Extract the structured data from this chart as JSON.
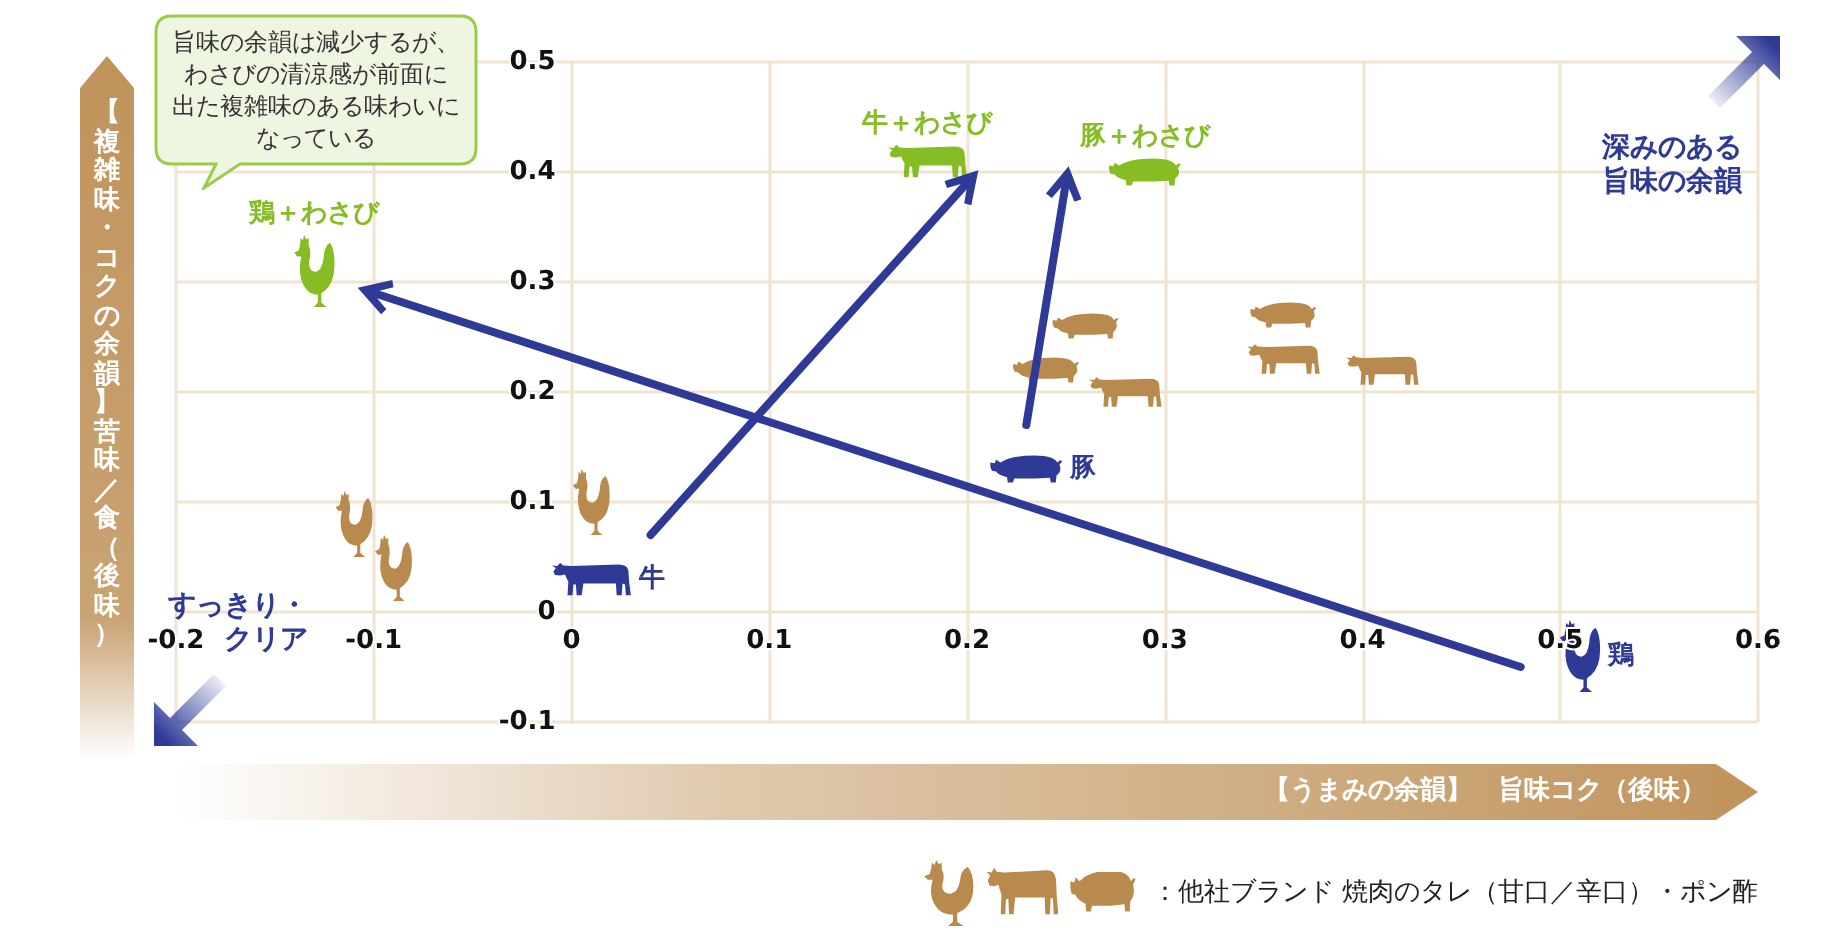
{
  "chart_data": {
    "type": "scatter",
    "xlabel": "【うまみの余韻】　旨味コク（後味）",
    "ylabel": "【複雑味・コクの余韻】苦味／食（後味）",
    "xlim": [
      -0.2,
      0.6
    ],
    "ylim": [
      -0.1,
      0.5
    ],
    "xticks": [
      -0.2,
      -0.1,
      0,
      0.1,
      0.2,
      0.3,
      0.4,
      0.5,
      0.6
    ],
    "yticks": [
      -0.1,
      0,
      0.1,
      0.2,
      0.3,
      0.4,
      0.5
    ],
    "grid": true,
    "legend": "bottom right",
    "series": [
      {
        "name": "鶏",
        "color": "#2f3a97",
        "x": [
          0.51
        ],
        "values": [
          -0.04
        ]
      },
      {
        "name": "牛",
        "color": "#2f3a97",
        "x": [
          0.01
        ],
        "values": [
          0.03
        ]
      },
      {
        "name": "豚",
        "color": "#2f3a97",
        "x": [
          0.23
        ],
        "values": [
          0.13
        ]
      },
      {
        "name": "鶏＋わさび",
        "color": "#86bd24",
        "x": [
          -0.13
        ],
        "values": [
          0.31
        ]
      },
      {
        "name": "牛＋わさび",
        "color": "#86bd24",
        "x": [
          0.18
        ],
        "values": [
          0.41
        ]
      },
      {
        "name": "豚＋わさび",
        "color": "#86bd24",
        "x": [
          0.29
        ],
        "values": [
          0.4
        ]
      },
      {
        "color": "#b98a4e",
        "x": [
          -0.11,
          -0.09,
          0.01
        ],
        "values": [
          0.08,
          0.04,
          0.1
        ]
      },
      {
        "color": "#b98a4e",
        "x": [
          0.28,
          0.36,
          0.41
        ],
        "values": [
          0.2,
          0.23,
          0.22
        ]
      },
      {
        "name": "：他社ブランド 焼肉のタレ（甘口／辛口）・ポン酢",
        "color": "#b98a4e",
        "x": [
          0.24,
          0.26,
          0.36
        ],
        "values": [
          0.22,
          0.26,
          0.27
        ]
      },
      {
        "type": "line",
        "color": "#2f3a97",
        "x": [
          0.48,
          -0.1
        ],
        "values": [
          -0.05,
          0.29
        ]
      },
      {
        "type": "line",
        "color": "#2f3a97",
        "x": [
          0.04,
          0.2
        ],
        "values": [
          0.07,
          0.39
        ]
      },
      {
        "type": "line",
        "color": "#2f3a97",
        "x": [
          0.23,
          0.25
        ],
        "values": [
          0.17,
          0.39
        ]
      }
    ],
    "annotations": [
      "旨味の余韻は減少するが、わさびの清涼感が前面に出た複雑味のある味わいになっている",
      "深みのある旨味の余韻",
      "すっきり・クリア"
    ]
  }
}
